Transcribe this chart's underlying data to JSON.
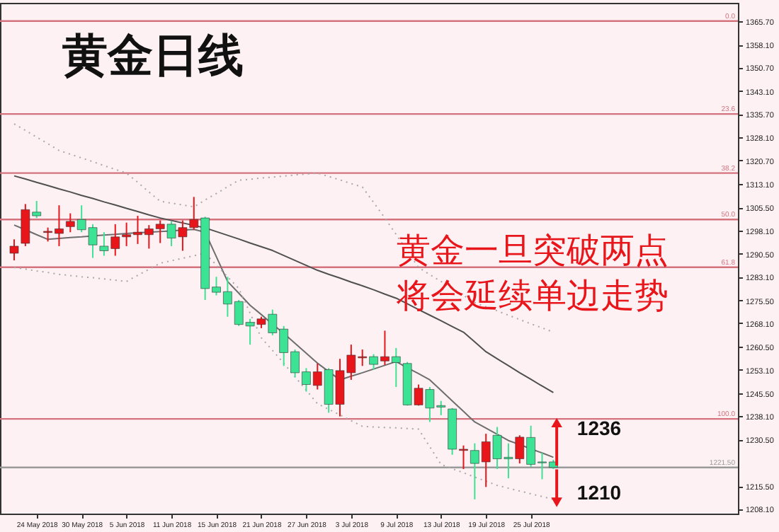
{
  "chart_data": {
    "type": "candlestick",
    "title": "黄金日线",
    "annotations": [
      "黄金一旦突破两点",
      "将会延续单边走势",
      {
        "text": "1236",
        "y": 1236
      },
      "1210",
      {
        "text": "0.0",
        "y": 1365.7
      },
      {
        "text": "23.6",
        "y": 1335.7
      },
      {
        "text": "38.2",
        "y": 1316.6
      },
      {
        "text": "50.0",
        "y": 1301.6
      },
      {
        "text": "61.8",
        "y": 1286.2
      },
      {
        "text": "100.0",
        "y": 1237.2
      }
    ],
    "categories": [
      null,
      null,
      "24 May 2018",
      null,
      null,
      null,
      "30 May 2018",
      null,
      null,
      null,
      "5 Jun 2018",
      null,
      null,
      null,
      "11 Jun 2018",
      null,
      null,
      null,
      "15 Jun 2018",
      null,
      null,
      null,
      "21 Jun 2018",
      null,
      null,
      null,
      "27 Jun 2018",
      null,
      null,
      null,
      "3 Jul 2018",
      null,
      null,
      null,
      "9 Jul 2018",
      null,
      null,
      null,
      "13 Jul 2018",
      null,
      null,
      null,
      "19 Jul 2018",
      null,
      null,
      null,
      "25 Jul 2018",
      null,
      null
    ],
    "ohlc": [
      [
        1290.7,
        1295.2,
        1288.4,
        1293.0
      ],
      [
        1293.9,
        1306.6,
        1293.0,
        1304.8
      ],
      [
        1304.0,
        1307.6,
        1302.1,
        1302.8
      ],
      [
        1297.4,
        1299.0,
        1294.5,
        1297.8
      ],
      [
        1297.1,
        1306.2,
        1293.0,
        1298.6
      ],
      [
        1299.3,
        1303.6,
        1297.5,
        1301.0
      ],
      [
        1301.6,
        1306.2,
        1297.5,
        1298.3
      ],
      [
        1299.0,
        1300.1,
        1289.2,
        1293.4
      ],
      [
        1293.0,
        1297.5,
        1289.9,
        1291.5
      ],
      [
        1292.2,
        1300.1,
        1289.9,
        1296.0
      ],
      [
        1296.0,
        1300.6,
        1293.0,
        1296.7
      ],
      [
        1296.7,
        1302.8,
        1293.7,
        1297.5
      ],
      [
        1296.7,
        1299.8,
        1292.2,
        1298.6
      ],
      [
        1298.6,
        1301.3,
        1294.0,
        1300.1
      ],
      [
        1300.1,
        1301.0,
        1293.0,
        1295.6
      ],
      [
        1296.0,
        1301.3,
        1291.5,
        1299.0
      ],
      [
        1299.0,
        1308.9,
        1298.3,
        1301.6
      ],
      [
        1302.1,
        1302.5,
        1275.6,
        1279.3
      ],
      [
        1279.8,
        1283.1,
        1277.1,
        1278.1
      ],
      [
        1278.3,
        1283.1,
        1270.2,
        1274.3
      ],
      [
        1275.1,
        1275.6,
        1267.2,
        1267.7
      ],
      [
        1268.4,
        1269.5,
        1261.2,
        1267.2
      ],
      [
        1267.7,
        1270.2,
        1266.5,
        1269.5
      ],
      [
        1271.0,
        1272.5,
        1264.2,
        1265.0
      ],
      [
        1266.2,
        1267.2,
        1254.3,
        1258.6
      ],
      [
        1258.9,
        1259.6,
        1250.6,
        1252.1
      ],
      [
        1252.4,
        1253.6,
        1246.0,
        1248.3
      ],
      [
        1248.0,
        1255.1,
        1246.7,
        1252.4
      ],
      [
        1253.1,
        1253.6,
        1239.2,
        1241.9
      ],
      [
        1241.9,
        1256.6,
        1238.0,
        1252.8
      ],
      [
        1252.1,
        1261.2,
        1249.8,
        1257.8
      ],
      [
        1256.9,
        1259.6,
        1254.3,
        1257.3
      ],
      [
        1257.3,
        1258.1,
        1253.1,
        1254.8
      ],
      [
        1255.9,
        1265.7,
        1254.6,
        1257.3
      ],
      [
        1257.3,
        1260.1,
        1247.5,
        1255.4
      ],
      [
        1255.1,
        1255.6,
        1241.5,
        1241.7
      ],
      [
        1241.7,
        1248.3,
        1241.5,
        1247.1
      ],
      [
        1246.7,
        1247.5,
        1236.2,
        1240.7
      ],
      [
        1241.5,
        1243.0,
        1238.4,
        1241.0
      ],
      [
        1240.4,
        1240.7,
        1225.6,
        1227.4
      ],
      [
        1227.0,
        1228.6,
        1221.0,
        1227.4
      ],
      [
        1227.0,
        1229.3,
        1211.2,
        1222.8
      ],
      [
        1223.3,
        1232.4,
        1215.2,
        1229.8
      ],
      [
        1231.9,
        1234.6,
        1221.0,
        1224.3
      ],
      [
        1224.8,
        1229.3,
        1218.0,
        1224.3
      ],
      [
        1224.3,
        1231.9,
        1222.8,
        1231.3
      ],
      [
        1231.2,
        1235.0,
        1221.7,
        1222.5
      ],
      [
        1223.3,
        1226.3,
        1217.7,
        1223.0
      ],
      [
        1223.3,
        1224.0,
        1221.0,
        1221.5
      ]
    ],
    "colors": [
      "#e8161b",
      "#e8161b",
      "#3ce394",
      "#e8161b",
      "#e8161b",
      "#e8161b",
      "#3ce394",
      "#3ce394",
      "#3ce394",
      "#e8161b",
      "#e8161b",
      "#e8161b",
      "#e8161b",
      "#e8161b",
      "#3ce394",
      "#e8161b",
      "#e8161b",
      "#3ce394",
      "#3ce394",
      "#3ce394",
      "#3ce394",
      "#3ce394",
      "#e8161b",
      "#3ce394",
      "#3ce394",
      "#3ce394",
      "#3ce394",
      "#e8161b",
      "#3ce394",
      "#e8161b",
      "#e8161b",
      "#e8161b",
      "#3ce394",
      "#e8161b",
      "#3ce394",
      "#3ce394",
      "#e8161b",
      "#3ce394",
      "#3ce394",
      "#3ce394",
      "#e8161b",
      "#3ce394",
      "#e8161b",
      "#3ce394",
      "#3ce394",
      "#e8161b",
      "#3ce394",
      "#3ce394",
      "#3ce394"
    ],
    "series": [
      {
        "type": "line",
        "color": "#6e6e6e",
        "line_style": "solid",
        "values": [
          1299.8,
          1298.3,
          1296.7,
          1295.2,
          1295.5,
          1295.8,
          1296.0,
          1296.3,
          1296.6,
          1296.8,
          1297.1,
          1297.3,
          1297.5,
          1297.7,
          1297.9,
          1298.2,
          1298.4,
          1297.5,
          1289.6,
          1281.6,
          1277.8,
          1273.9,
          1270.9,
          1267.8,
          1264.8,
          1261.6,
          1258.4,
          1255.2,
          1252.5,
          1249.8,
          1251.0,
          1252.1,
          1253.3,
          1254.5,
          1255.7,
          1253.7,
          1251.8,
          1249.8,
          1246.4,
          1243.0,
          1239.6,
          1236.2,
          1234.2,
          1232.2,
          1230.2,
          1228.9,
          1227.5,
          1226.2,
          1224.8
        ]
      },
      {
        "type": "line",
        "color": "#505050",
        "line_style": "solid",
        "values": [
          1315.7,
          1314.7,
          1313.6,
          1312.6,
          1311.5,
          1310.5,
          1309.4,
          1308.4,
          1307.3,
          1306.3,
          1305.2,
          1304.2,
          1303.1,
          1302.1,
          1301.3,
          1300.5,
          1299.7,
          1298.9,
          1297.7,
          1296.5,
          1295.3,
          1294.0,
          1292.8,
          1291.6,
          1290.0,
          1288.4,
          1286.8,
          1285.2,
          1283.9,
          1282.7,
          1281.4,
          1280.2,
          1278.9,
          1277.5,
          1276.2,
          1274.4,
          1272.5,
          1270.7,
          1268.9,
          1267.0,
          1265.2,
          1262.1,
          1258.9,
          1256.6,
          1254.4,
          1252.1,
          1250.0,
          1247.8,
          1245.7
        ]
      },
      {
        "type": "line",
        "color": "#a8a8a8",
        "line_style": "dotted",
        "values": [
          1332.5,
          1330.4,
          1328.2,
          1326.1,
          1323.9,
          1322.7,
          1321.5,
          1320.3,
          1319.0,
          1317.8,
          1316.6,
          1313.6,
          1310.5,
          1307.5,
          1306.9,
          1306.3,
          1305.7,
          1307.9,
          1310.0,
          1312.2,
          1314.3,
          1314.6,
          1315.0,
          1315.3,
          1315.6,
          1316.0,
          1316.3,
          1316.6,
          1315.5,
          1314.4,
          1313.2,
          1312.1,
          1307.1,
          1302.1,
          1296.8,
          1291.4,
          1286.1,
          1283.8,
          1281.6,
          1279.3,
          1277.1,
          1274.8,
          1273.4,
          1272.1,
          1270.7,
          1269.3,
          1267.9,
          1266.6,
          1265.2
        ]
      },
      {
        "type": "line",
        "color": "#a8a8a8",
        "line_style": "dotted",
        "values": [
          1286.1,
          1285.6,
          1285.0,
          1284.5,
          1283.9,
          1283.5,
          1283.1,
          1282.8,
          1282.4,
          1282.0,
          1281.6,
          1283.6,
          1285.5,
          1287.5,
          1288.3,
          1289.1,
          1289.9,
          1290.7,
          1286.9,
          1283.1,
          1279.3,
          1271.4,
          1263.4,
          1259.3,
          1255.2,
          1250.8,
          1246.5,
          1242.1,
          1240.3,
          1238.5,
          1236.6,
          1234.8,
          1234.6,
          1234.4,
          1234.3,
          1234.1,
          1233.9,
          1228.2,
          1222.5,
          1221.1,
          1219.8,
          1218.4,
          1217.1,
          1215.7,
          1214.8,
          1213.9,
          1213.0,
          1212.1,
          1211.2
        ]
      }
    ],
    "ylim": [
      1206.6,
      1371.6
    ],
    "yticks": [
      {
        "value": 1365.7,
        "label": "1365.70"
      },
      {
        "value": 1358.1,
        "label": "1358.10"
      },
      {
        "value": 1350.7,
        "label": "1350.70"
      },
      {
        "value": 1343.1,
        "label": "1343.10"
      },
      {
        "value": 1335.7,
        "label": "1335.70"
      },
      {
        "value": 1328.1,
        "label": "1328.10"
      },
      {
        "value": 1320.7,
        "label": "1320.70"
      },
      {
        "value": 1313.1,
        "label": "1313.10"
      },
      {
        "value": 1305.5,
        "label": "1305.50"
      },
      {
        "value": 1298.1,
        "label": "1298.10"
      },
      {
        "value": 1290.5,
        "label": "1290.50"
      },
      {
        "value": 1283.1,
        "label": "1283.10"
      },
      {
        "value": 1275.5,
        "label": "1275.50"
      },
      {
        "value": 1268.1,
        "label": "1268.10"
      },
      {
        "value": 1260.5,
        "label": "1260.50"
      },
      {
        "value": 1253.1,
        "label": "1253.10"
      },
      {
        "value": 1245.5,
        "label": "1245.50"
      },
      {
        "value": 1238.1,
        "label": "1238.10"
      },
      {
        "value": 1230.5,
        "label": "1230.50"
      },
      {
        "value": 1215.5,
        "label": "1215.50"
      },
      {
        "value": 1208.1,
        "label": "1208.10"
      }
    ],
    "ref_lines": [
      {
        "axis": "y",
        "value": 1365.7,
        "color": "#d4737d"
      },
      {
        "axis": "y",
        "value": 1335.7,
        "color": "#d4737d"
      },
      {
        "axis": "y",
        "value": 1316.6,
        "color": "#d4737d"
      },
      {
        "axis": "y",
        "value": 1301.6,
        "color": "#d4737d"
      },
      {
        "axis": "y",
        "value": 1286.2,
        "color": "#d4737d"
      },
      {
        "axis": "y",
        "value": 1237.2,
        "color": "#d4737d"
      },
      {
        "axis": "y",
        "value": 1221.5,
        "label": "1221.50",
        "color": "#9a9a9a"
      }
    ],
    "grid": false
  }
}
